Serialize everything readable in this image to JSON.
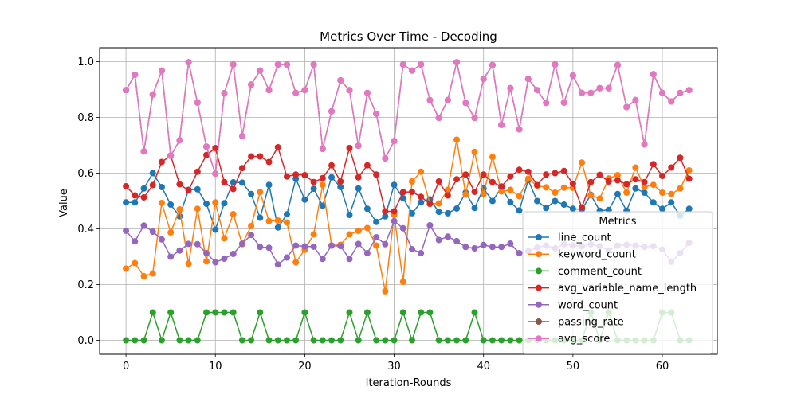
{
  "chart_data": {
    "type": "line",
    "title": "Metrics Over Time - Decoding",
    "xlabel": "Iteration-Rounds",
    "ylabel": "Value",
    "xlim": [
      -2.95,
      66.15
    ],
    "ylim": [
      -0.05,
      1.05
    ],
    "xticks": [
      0,
      10,
      20,
      30,
      40,
      50,
      60
    ],
    "yticks": [
      0.0,
      0.2,
      0.4,
      0.6,
      0.8,
      1.0
    ],
    "grid": true,
    "legend": {
      "title": "Metrics",
      "placement": "center-right"
    },
    "x": [
      0,
      1,
      2,
      3,
      4,
      5,
      6,
      7,
      8,
      9,
      10,
      11,
      12,
      13,
      14,
      15,
      16,
      17,
      18,
      19,
      20,
      21,
      22,
      23,
      24,
      25,
      26,
      27,
      28,
      29,
      30,
      31,
      32,
      33,
      34,
      35,
      36,
      37,
      38,
      39,
      40,
      41,
      42,
      43,
      44,
      45,
      46,
      47,
      48,
      49,
      50,
      51,
      52,
      53,
      54,
      55,
      56,
      57,
      58,
      59,
      60,
      61,
      62,
      63
    ],
    "series": [
      {
        "name": "line_count",
        "color": "#1f77b4",
        "values": [
          0.495,
          0.495,
          0.545,
          0.6,
          0.55,
          0.487,
          0.445,
          0.54,
          0.542,
          0.49,
          0.397,
          0.492,
          0.567,
          0.566,
          0.525,
          0.44,
          0.558,
          0.405,
          0.452,
          0.58,
          0.505,
          0.544,
          0.483,
          0.585,
          0.55,
          0.45,
          0.545,
          0.472,
          0.425,
          0.445,
          0.558,
          0.51,
          0.456,
          0.495,
          0.506,
          0.461,
          0.456,
          0.473,
          0.53,
          0.475,
          0.545,
          0.5,
          0.548,
          0.496,
          0.466,
          0.575,
          0.5,
          0.475,
          0.5,
          0.487,
          0.472,
          0.47,
          0.522,
          0.465,
          0.468,
          0.525,
          0.465,
          0.545,
          0.53,
          0.495,
          0.472,
          0.495,
          0.447,
          0.472
        ]
      },
      {
        "name": "keyword_count",
        "color": "#ff7f0e",
        "values": [
          0.257,
          0.277,
          0.23,
          0.24,
          0.493,
          0.387,
          0.47,
          0.275,
          0.472,
          0.283,
          0.495,
          0.366,
          0.453,
          0.345,
          0.41,
          0.532,
          0.428,
          0.43,
          0.423,
          0.28,
          0.325,
          0.38,
          0.558,
          0.34,
          0.343,
          0.38,
          0.393,
          0.403,
          0.34,
          0.176,
          0.45,
          0.21,
          0.57,
          0.605,
          0.49,
          0.491,
          0.54,
          0.72,
          0.524,
          0.676,
          0.525,
          0.658,
          0.534,
          0.54,
          0.517,
          0.58,
          0.555,
          0.549,
          0.53,
          0.548,
          0.547,
          0.638,
          0.52,
          0.509,
          0.581,
          0.593,
          0.53,
          0.62,
          0.55,
          0.558,
          0.53,
          0.525,
          0.545,
          0.61
        ]
      },
      {
        "name": "comment_count",
        "color": "#2ca02c",
        "values": [
          0.0,
          0.0,
          0.0,
          0.1,
          0.0,
          0.1,
          0.0,
          0.0,
          0.0,
          0.1,
          0.1,
          0.1,
          0.1,
          0.0,
          0.0,
          0.1,
          0.0,
          0.0,
          0.0,
          0.0,
          0.1,
          0.0,
          0.0,
          0.0,
          0.0,
          0.1,
          0.0,
          0.1,
          0.0,
          0.0,
          0.0,
          0.1,
          0.0,
          0.1,
          0.1,
          0.0,
          0.0,
          0.0,
          0.0,
          0.1,
          0.0,
          0.0,
          0.0,
          0.0,
          0.0,
          0.0,
          0.0,
          0.0,
          0.0,
          0.0,
          0.0,
          0.0,
          0.1,
          0.0,
          0.1,
          0.0,
          0.0,
          0.0,
          0.0,
          0.0,
          0.1,
          0.1,
          0.0,
          0.0
        ]
      },
      {
        "name": "avg_variable_name_length",
        "color": "#d62728",
        "values": [
          0.553,
          0.52,
          0.513,
          0.557,
          0.64,
          0.663,
          0.56,
          0.538,
          0.605,
          0.665,
          0.69,
          0.568,
          0.543,
          0.618,
          0.66,
          0.66,
          0.64,
          0.693,
          0.588,
          0.595,
          0.593,
          0.568,
          0.582,
          0.628,
          0.57,
          0.69,
          0.585,
          0.628,
          0.595,
          0.463,
          0.463,
          0.532,
          0.533,
          0.515,
          0.49,
          0.57,
          0.52,
          0.578,
          0.595,
          0.533,
          0.595,
          0.568,
          0.552,
          0.588,
          0.612,
          0.605,
          0.557,
          0.595,
          0.6,
          0.608,
          0.562,
          0.477,
          0.568,
          0.594,
          0.57,
          0.574,
          0.56,
          0.578,
          0.568,
          0.632,
          0.59,
          0.62,
          0.655,
          0.58
        ]
      },
      {
        "name": "word_count",
        "color": "#9467bd",
        "values": [
          0.393,
          0.355,
          0.412,
          0.39,
          0.362,
          0.3,
          0.322,
          0.346,
          0.345,
          0.313,
          0.28,
          0.293,
          0.31,
          0.347,
          0.378,
          0.335,
          0.332,
          0.272,
          0.297,
          0.34,
          0.337,
          0.336,
          0.292,
          0.34,
          0.338,
          0.292,
          0.346,
          0.313,
          0.37,
          0.345,
          0.428,
          0.402,
          0.327,
          0.313,
          0.413,
          0.36,
          0.372,
          0.356,
          0.335,
          0.33,
          0.342,
          0.335,
          0.335,
          0.347,
          0.313,
          0.32,
          0.333,
          0.34,
          0.33,
          0.345,
          0.34,
          0.337,
          0.344,
          0.338,
          0.322,
          0.34,
          0.343,
          0.34,
          0.335,
          0.338,
          0.326,
          0.282,
          0.313,
          0.35
        ]
      },
      {
        "name": "passing_rate",
        "color": "#8c564b",
        "values": [
          0.898,
          0.953,
          0.678,
          0.882,
          0.968,
          0.662,
          0.718,
          0.998,
          0.853,
          0.695,
          0.598,
          0.887,
          0.99,
          0.733,
          0.918,
          0.968,
          0.898,
          0.99,
          0.99,
          0.888,
          0.898,
          0.99,
          0.687,
          0.822,
          0.933,
          0.898,
          0.698,
          0.888,
          0.813,
          0.653,
          0.715,
          0.99,
          0.968,
          0.99,
          0.862,
          0.798,
          0.862,
          0.998,
          0.852,
          0.798,
          0.938,
          0.988,
          0.773,
          0.905,
          0.757,
          0.938,
          0.898,
          0.852,
          0.99,
          0.853,
          0.95,
          0.888,
          0.888,
          0.905,
          0.905,
          0.988,
          0.837,
          0.862,
          0.703,
          0.955,
          0.888,
          0.857,
          0.888,
          0.898
        ]
      },
      {
        "name": "avg_score",
        "color": "#e377c2",
        "values": [
          0.898,
          0.953,
          0.678,
          0.882,
          0.968,
          0.662,
          0.718,
          0.998,
          0.853,
          0.695,
          0.598,
          0.887,
          0.99,
          0.733,
          0.918,
          0.968,
          0.898,
          0.99,
          0.99,
          0.888,
          0.898,
          0.99,
          0.687,
          0.822,
          0.933,
          0.898,
          0.698,
          0.888,
          0.813,
          0.653,
          0.715,
          0.99,
          0.968,
          0.99,
          0.862,
          0.798,
          0.862,
          0.998,
          0.852,
          0.798,
          0.938,
          0.988,
          0.773,
          0.905,
          0.757,
          0.938,
          0.898,
          0.852,
          0.99,
          0.853,
          0.95,
          0.888,
          0.888,
          0.905,
          0.905,
          0.988,
          0.837,
          0.862,
          0.703,
          0.955,
          0.888,
          0.857,
          0.888,
          0.898
        ]
      }
    ]
  }
}
